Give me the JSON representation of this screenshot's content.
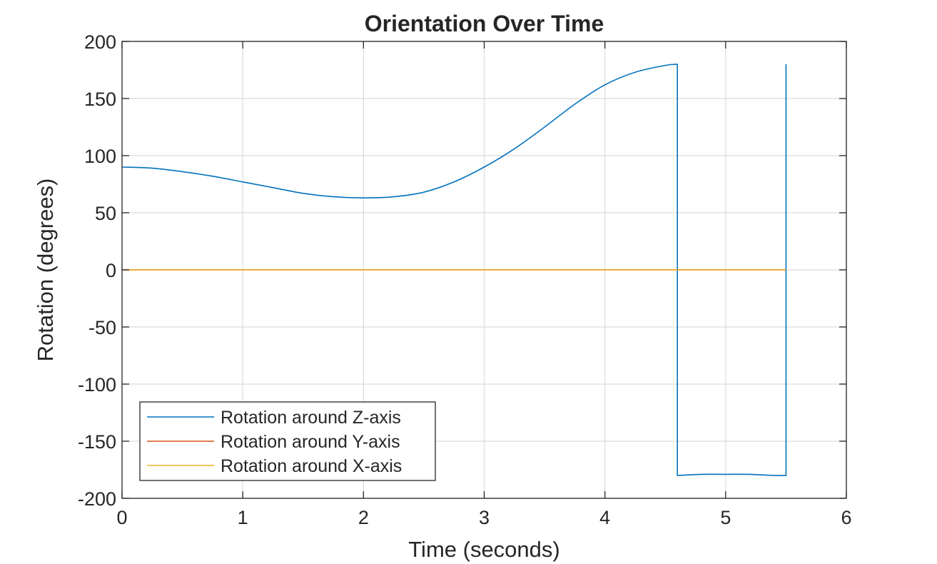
{
  "chart_data": {
    "type": "line",
    "title": "Orientation Over Time",
    "xlabel": "Time (seconds)",
    "ylabel": "Rotation (degrees)",
    "xlim": [
      0,
      6
    ],
    "ylim": [
      -200,
      200
    ],
    "xticks": [
      0,
      1,
      2,
      3,
      4,
      5,
      6
    ],
    "yticks": [
      -200,
      -150,
      -100,
      -50,
      0,
      50,
      100,
      150,
      200
    ],
    "grid": true,
    "legend_position": "bottom-left",
    "series": [
      {
        "name": "Rotation around Z-axis",
        "color": "#0072BD",
        "x": [
          0,
          0.25,
          0.5,
          0.75,
          1.0,
          1.25,
          1.5,
          1.75,
          2.0,
          2.25,
          2.5,
          2.75,
          3.0,
          3.25,
          3.5,
          3.75,
          4.0,
          4.25,
          4.5,
          4.6,
          4.6,
          4.8,
          5.0,
          5.2,
          5.4,
          5.5,
          5.5
        ],
        "values": [
          90,
          89,
          86,
          82,
          77,
          72,
          67,
          64,
          63,
          64,
          68,
          77,
          90,
          106,
          125,
          145,
          162,
          173,
          179,
          180,
          -180,
          -179,
          -179,
          -179,
          -180,
          -180,
          180
        ]
      },
      {
        "name": "Rotation around Y-axis",
        "color": "#D95319",
        "x": [
          0,
          5.5
        ],
        "values": [
          0,
          0
        ]
      },
      {
        "name": "Rotation around X-axis",
        "color": "#EDB120",
        "x": [
          0,
          5.5
        ],
        "values": [
          0,
          0
        ]
      }
    ]
  }
}
